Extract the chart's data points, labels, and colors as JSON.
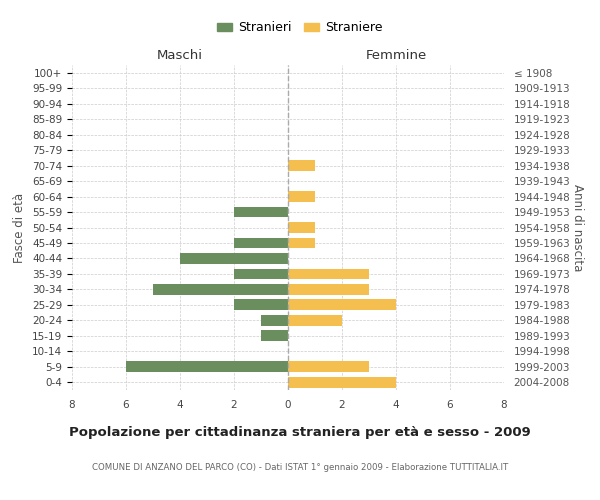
{
  "age_groups": [
    "0-4",
    "5-9",
    "10-14",
    "15-19",
    "20-24",
    "25-29",
    "30-34",
    "35-39",
    "40-44",
    "45-49",
    "50-54",
    "55-59",
    "60-64",
    "65-69",
    "70-74",
    "75-79",
    "80-84",
    "85-89",
    "90-94",
    "95-99",
    "100+"
  ],
  "birth_years": [
    "2004-2008",
    "1999-2003",
    "1994-1998",
    "1989-1993",
    "1984-1988",
    "1979-1983",
    "1974-1978",
    "1969-1973",
    "1964-1968",
    "1959-1963",
    "1954-1958",
    "1949-1953",
    "1944-1948",
    "1939-1943",
    "1934-1938",
    "1929-1933",
    "1924-1928",
    "1919-1923",
    "1914-1918",
    "1909-1913",
    "≤ 1908"
  ],
  "males": [
    0,
    6,
    0,
    1,
    1,
    2,
    5,
    2,
    4,
    2,
    0,
    2,
    0,
    0,
    0,
    0,
    0,
    0,
    0,
    0,
    0
  ],
  "females": [
    4,
    3,
    0,
    0,
    2,
    4,
    3,
    3,
    0,
    1,
    1,
    0,
    1,
    0,
    1,
    0,
    0,
    0,
    0,
    0,
    0
  ],
  "male_color": "#6b8e5e",
  "female_color": "#f5bf4f",
  "male_label": "Stranieri",
  "female_label": "Straniere",
  "title": "Popolazione per cittadinanza straniera per età e sesso - 2009",
  "subtitle": "COMUNE DI ANZANO DEL PARCO (CO) - Dati ISTAT 1° gennaio 2009 - Elaborazione TUTTITALIA.IT",
  "xlabel_left": "Maschi",
  "xlabel_right": "Femmine",
  "ylabel_left": "Fasce di età",
  "ylabel_right": "Anni di nascita",
  "xlim": 8,
  "background_color": "#ffffff",
  "grid_color": "#cccccc"
}
